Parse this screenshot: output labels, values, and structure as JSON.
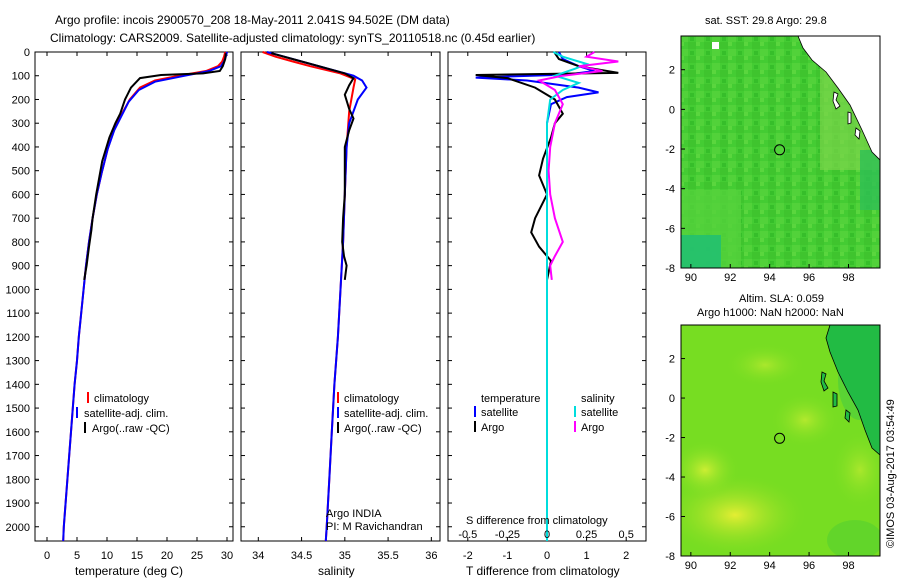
{
  "header": {
    "line1": "Argo profile: incois 2900570_208 18-May-2011 2.041S 94.502E (DM data)",
    "line2": "Climatology: CARS2009. Satellite-adjusted climatology: synTS_20110518.nc (0.45d earlier)"
  },
  "colors": {
    "climatology": "#ff0000",
    "satellite": "#0000ff",
    "argo": "#000000",
    "sat_salinity": "#00dddd",
    "argo_salinity": "#ff00ff"
  },
  "chart_data": [
    {
      "id": "temperature",
      "type": "line",
      "xlabel": "temperature (deg C)",
      "xlim": [
        -2,
        31
      ],
      "xticks": [
        0,
        5,
        10,
        15,
        20,
        25,
        30
      ],
      "ylim": [
        2060,
        0
      ],
      "yticks": [
        0,
        100,
        200,
        300,
        400,
        500,
        600,
        700,
        800,
        900,
        1000,
        1100,
        1200,
        1300,
        1400,
        1500,
        1600,
        1700,
        1800,
        1900,
        2000
      ],
      "legend": [
        "climatology",
        "satellite-adj. clim.",
        "Argo(..raw -QC)"
      ],
      "series": [
        {
          "name": "climatology",
          "color": "#ff0000",
          "points": [
            [
              29.7,
              0
            ],
            [
              29.5,
              20
            ],
            [
              29.2,
              40
            ],
            [
              28.5,
              60
            ],
            [
              26.5,
              80
            ],
            [
              22,
              100
            ],
            [
              18,
              120
            ],
            [
              15.5,
              150
            ],
            [
              13.8,
              200
            ],
            [
              12.5,
              260
            ],
            [
              11.3,
              320
            ],
            [
              10.2,
              400
            ],
            [
              9.2,
              500
            ],
            [
              8.3,
              600
            ],
            [
              7.6,
              700
            ],
            [
              7.0,
              800
            ],
            [
              6.5,
              900
            ],
            [
              6.1,
              1000
            ],
            [
              5.7,
              1100
            ],
            [
              5.3,
              1200
            ],
            [
              5.0,
              1300
            ],
            [
              4.6,
              1400
            ],
            [
              4.3,
              1500
            ],
            [
              4.0,
              1600
            ],
            [
              3.7,
              1700
            ],
            [
              3.4,
              1800
            ],
            [
              3.1,
              1900
            ],
            [
              2.8,
              2000
            ],
            [
              2.7,
              2060
            ]
          ]
        },
        {
          "name": "satellite-adj. clim.",
          "color": "#0000ff",
          "points": [
            [
              30.0,
              0
            ],
            [
              29.8,
              20
            ],
            [
              29.5,
              40
            ],
            [
              29.0,
              60
            ],
            [
              27.0,
              80
            ],
            [
              23,
              100
            ],
            [
              18,
              125
            ],
            [
              15.3,
              160
            ],
            [
              13.6,
              210
            ],
            [
              12.4,
              270
            ],
            [
              11.2,
              330
            ],
            [
              10.1,
              410
            ],
            [
              9.1,
              510
            ],
            [
              8.3,
              600
            ],
            [
              7.6,
              700
            ],
            [
              7.0,
              800
            ],
            [
              6.5,
              900
            ],
            [
              6.1,
              1000
            ],
            [
              5.7,
              1100
            ],
            [
              5.3,
              1200
            ],
            [
              5.0,
              1300
            ],
            [
              4.6,
              1400
            ],
            [
              4.3,
              1500
            ],
            [
              4.0,
              1600
            ],
            [
              3.7,
              1700
            ],
            [
              3.4,
              1800
            ],
            [
              3.1,
              1900
            ],
            [
              2.8,
              2000
            ],
            [
              2.7,
              2060
            ]
          ]
        },
        {
          "name": "Argo(..raw -QC)",
          "color": "#000000",
          "points": [
            [
              29.8,
              5
            ],
            [
              29.7,
              30
            ],
            [
              29.3,
              60
            ],
            [
              28.8,
              80
            ],
            [
              26,
              90
            ],
            [
              19,
              97
            ],
            [
              15.5,
              110
            ],
            [
              14,
              150
            ],
            [
              13,
              200
            ],
            [
              12.2,
              260
            ],
            [
              11.4,
              300
            ],
            [
              10.4,
              360
            ],
            [
              9.2,
              460
            ],
            [
              8.2,
              600
            ],
            [
              7.6,
              700
            ],
            [
              7.4,
              750
            ],
            [
              7.0,
              820
            ],
            [
              6.6,
              900
            ],
            [
              6.2,
              960
            ]
          ]
        }
      ]
    },
    {
      "id": "salinity",
      "type": "line",
      "xlabel": "salinity",
      "xlim": [
        33.8,
        36.1
      ],
      "xticks": [
        34,
        34.5,
        35,
        35.5,
        36
      ],
      "ylim": [
        2060,
        0
      ],
      "legend": [
        "climatology",
        "satellite-adj. clim.",
        "Argo(..raw -QC)"
      ],
      "annotations": [
        "Argo INDIA",
        "PI: M Ravichandran"
      ],
      "series": [
        {
          "name": "climatology",
          "color": "#ff0000",
          "points": [
            [
              34.05,
              0
            ],
            [
              34.2,
              20
            ],
            [
              34.4,
              40
            ],
            [
              34.6,
              60
            ],
            [
              34.95,
              90
            ],
            [
              35.12,
              115
            ],
            [
              35.1,
              150
            ],
            [
              35.05,
              250
            ],
            [
              35.02,
              400
            ],
            [
              35.0,
              600
            ],
            [
              34.98,
              800
            ],
            [
              34.95,
              1000
            ],
            [
              34.92,
              1200
            ],
            [
              34.88,
              1400
            ],
            [
              34.85,
              1600
            ],
            [
              34.82,
              1800
            ],
            [
              34.79,
              2000
            ],
            [
              34.78,
              2060
            ]
          ]
        },
        {
          "name": "satellite-adj. clim.",
          "color": "#0000ff",
          "points": [
            [
              34.1,
              0
            ],
            [
              34.3,
              20
            ],
            [
              34.5,
              40
            ],
            [
              34.8,
              70
            ],
            [
              35.1,
              100
            ],
            [
              35.2,
              120
            ],
            [
              35.25,
              150
            ],
            [
              35.15,
              200
            ],
            [
              35.05,
              300
            ],
            [
              35.02,
              400
            ],
            [
              35.0,
              600
            ],
            [
              34.98,
              800
            ],
            [
              34.95,
              1000
            ],
            [
              34.92,
              1200
            ],
            [
              34.88,
              1400
            ],
            [
              34.85,
              1600
            ],
            [
              34.82,
              1800
            ],
            [
              34.79,
              2000
            ],
            [
              34.78,
              2060
            ]
          ]
        },
        {
          "name": "Argo(..raw -QC)",
          "color": "#000000",
          "points": [
            [
              34.15,
              5
            ],
            [
              34.4,
              30
            ],
            [
              34.7,
              60
            ],
            [
              35.0,
              90
            ],
            [
              35.1,
              110
            ],
            [
              35.05,
              140
            ],
            [
              35.0,
              180
            ],
            [
              35.05,
              240
            ],
            [
              35.1,
              280
            ],
            [
              35.05,
              330
            ],
            [
              35.0,
              400
            ],
            [
              35.0,
              500
            ],
            [
              35.0,
              600
            ],
            [
              34.98,
              700
            ],
            [
              34.97,
              800
            ],
            [
              34.99,
              860
            ],
            [
              35.02,
              900
            ],
            [
              35.0,
              960
            ]
          ]
        }
      ]
    },
    {
      "id": "difference",
      "type": "line",
      "xlabel": "T difference from climatology",
      "xlabel_top": "S difference from climatology",
      "xlim": [
        -2.5,
        2.5
      ],
      "xticks": [
        -2,
        -1,
        0,
        1,
        2
      ],
      "xticks_top": [
        -0.5,
        -0.25,
        0,
        0.25,
        0.5
      ],
      "ylim": [
        2060,
        0
      ],
      "legend_left": {
        "title": "temperature",
        "items": [
          "satellite",
          "Argo"
        ]
      },
      "legend_right": {
        "title": "salinity",
        "items": [
          "satellite",
          "Argo"
        ]
      },
      "series": [
        {
          "name": "temperature satellite",
          "color": "#0000ff",
          "points": [
            [
              0.3,
              0
            ],
            [
              0.4,
              30
            ],
            [
              0.8,
              60
            ],
            [
              1.2,
              80
            ],
            [
              0.5,
              95
            ],
            [
              -1.8,
              108
            ],
            [
              -0.5,
              120
            ],
            [
              0.8,
              150
            ],
            [
              1.3,
              170
            ],
            [
              0.5,
              190
            ],
            [
              0.1,
              220
            ],
            [
              0,
              300
            ],
            [
              0,
              500
            ],
            [
              0,
              1000
            ],
            [
              0,
              2060
            ]
          ]
        },
        {
          "name": "temperature Argo",
          "color": "#000000",
          "points": [
            [
              0.2,
              5
            ],
            [
              0.3,
              30
            ],
            [
              0.8,
              60
            ],
            [
              1.8,
              88
            ],
            [
              -1.8,
              97
            ],
            [
              -1.0,
              110
            ],
            [
              -0.3,
              150
            ],
            [
              0.2,
              200
            ],
            [
              0.4,
              260
            ],
            [
              0.2,
              300
            ],
            [
              0.1,
              360
            ],
            [
              -0.1,
              450
            ],
            [
              -0.2,
              520
            ],
            [
              0,
              600
            ],
            [
              -0.3,
              700
            ],
            [
              -0.4,
              760
            ],
            [
              -0.2,
              820
            ],
            [
              0.1,
              880
            ],
            [
              0,
              960
            ]
          ]
        },
        {
          "name": "salinity satellite",
          "color": "#00dddd",
          "points": [
            [
              0.04,
              0
            ],
            [
              0.1,
              20
            ],
            [
              0.25,
              50
            ],
            [
              0.18,
              70
            ],
            [
              0.05,
              100
            ],
            [
              0.2,
              130
            ],
            [
              0.1,
              160
            ],
            [
              0.02,
              200
            ],
            [
              0,
              300
            ],
            [
              0,
              500
            ],
            [
              0,
              1000
            ],
            [
              0,
              2060
            ]
          ]
        },
        {
          "name": "salinity Argo",
          "color": "#ff00ff",
          "points": [
            [
              0.3,
              0
            ],
            [
              0.25,
              20
            ],
            [
              0.45,
              40
            ],
            [
              0.2,
              60
            ],
            [
              0.35,
              80
            ],
            [
              0.1,
              100
            ],
            [
              -0.05,
              120
            ],
            [
              0.05,
              160
            ],
            [
              0.1,
              220
            ],
            [
              0.05,
              300
            ],
            [
              0.02,
              400
            ],
            [
              0.01,
              500
            ],
            [
              0.02,
              600
            ],
            [
              0.05,
              700
            ],
            [
              0.1,
              800
            ],
            [
              0.05,
              860
            ],
            [
              0.02,
              900
            ],
            [
              0.03,
              960
            ]
          ]
        }
      ]
    },
    {
      "id": "sst-map",
      "type": "heatmap",
      "title": "sat. SST: 29.8  Argo: 29.8",
      "xlim": [
        89.5,
        99.6
      ],
      "ylim": [
        -8,
        3.7
      ],
      "xticks": [
        90,
        92,
        94,
        96,
        98
      ],
      "yticks": [
        2,
        0,
        -2,
        -4,
        -6,
        -8
      ],
      "argo_location": [
        94.502,
        -2.041
      ]
    },
    {
      "id": "sla-map",
      "type": "heatmap",
      "title": "Altim. SLA: 0.059",
      "subtitle": "Argo h1000: NaN h2000: NaN",
      "xlim": [
        89.5,
        99.6
      ],
      "ylim": [
        -8,
        3.7
      ],
      "xticks": [
        90,
        92,
        94,
        96,
        98
      ],
      "yticks": [
        2,
        0,
        -2,
        -4,
        -6,
        -8
      ],
      "argo_location": [
        94.502,
        -2.041
      ]
    }
  ],
  "credit": "©IMOS 03-Aug-2017 03:54:49"
}
